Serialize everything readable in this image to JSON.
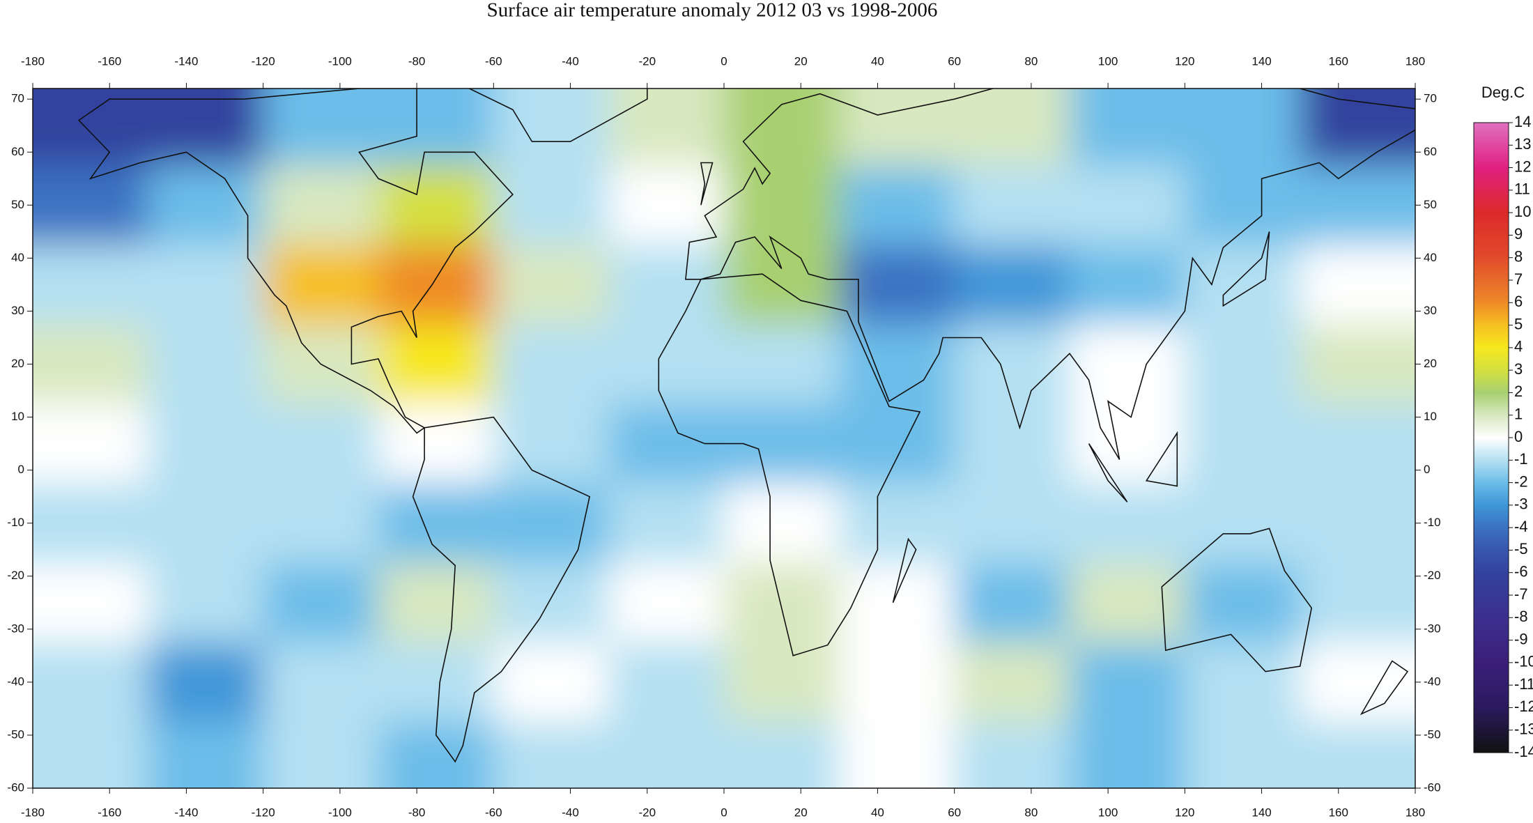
{
  "chart_data": {
    "type": "heatmap",
    "title": "Surface air temperature anomaly 2012 03 vs 1998-2006",
    "colorbar_label": "Deg.C",
    "xlim": [
      -180,
      180
    ],
    "ylim": [
      -60,
      72
    ],
    "xticks": [
      -180,
      -160,
      -140,
      -120,
      -100,
      -80,
      -60,
      -40,
      -20,
      0,
      20,
      40,
      60,
      80,
      100,
      120,
      140,
      160,
      180
    ],
    "yticks": [
      -60,
      -50,
      -40,
      -30,
      -20,
      -10,
      0,
      10,
      20,
      30,
      40,
      50,
      60,
      70
    ],
    "colorbar_ticks": [
      -14,
      -13,
      -12,
      -11,
      -10,
      -9,
      -8,
      -7,
      -6,
      -5,
      -4,
      -3,
      -2,
      -1,
      0,
      1,
      2,
      3,
      4,
      5,
      6,
      7,
      8,
      9,
      10,
      11,
      12,
      13,
      14
    ],
    "colorscale": [
      [
        -14,
        "#111111"
      ],
      [
        -12,
        "#2a1a5e"
      ],
      [
        -10,
        "#3b1f7a"
      ],
      [
        -8,
        "#3c2f8e"
      ],
      [
        -6,
        "#33429e"
      ],
      [
        -5,
        "#3856ad"
      ],
      [
        -4,
        "#3a72c2"
      ],
      [
        -3,
        "#3f96d8"
      ],
      [
        -2,
        "#6cbde9"
      ],
      [
        -1,
        "#b4e0f2"
      ],
      [
        0,
        "#ffffff"
      ],
      [
        1,
        "#d8e8c0"
      ],
      [
        2,
        "#a8d070"
      ],
      [
        3,
        "#d4e040"
      ],
      [
        4,
        "#f6e81e"
      ],
      [
        5,
        "#f6c020"
      ],
      [
        6,
        "#ef8a28"
      ],
      [
        7,
        "#e66a2a"
      ],
      [
        8,
        "#e24a2a"
      ],
      [
        10,
        "#dc2a2a"
      ],
      [
        12,
        "#e02080"
      ],
      [
        14,
        "#e070c0"
      ]
    ],
    "x": [
      -165,
      -135,
      -105,
      -75,
      -45,
      -15,
      15,
      45,
      75,
      105,
      135,
      165
    ],
    "y": [
      65,
      50,
      35,
      20,
      5,
      -10,
      -25,
      -40,
      -55
    ],
    "z": [
      [
        -6,
        -6,
        -2,
        -2,
        -1,
        1,
        2,
        1,
        1,
        -2,
        -2,
        -6
      ],
      [
        -4,
        -2,
        1,
        3,
        -1,
        0,
        2,
        -2,
        -1,
        -1,
        -2,
        -2
      ],
      [
        -1,
        -1,
        5,
        6,
        1,
        -1,
        2,
        -4,
        -3,
        -2,
        -1,
        0
      ],
      [
        1,
        -1,
        1,
        4,
        -1,
        -1,
        -1,
        -2,
        -1,
        0,
        -1,
        1
      ],
      [
        0,
        -1,
        -1,
        0,
        -1,
        -2,
        -2,
        -2,
        -1,
        0,
        -1,
        -1
      ],
      [
        -1,
        -1,
        -1,
        -2,
        -2,
        -1,
        0,
        -1,
        -1,
        -1,
        -1,
        -1
      ],
      [
        0,
        -1,
        -2,
        1,
        -1,
        0,
        1,
        0,
        -2,
        1,
        -2,
        -1
      ],
      [
        -1,
        -3,
        -1,
        -1,
        0,
        -1,
        1,
        0,
        1,
        -2,
        -1,
        0
      ],
      [
        -1,
        -2,
        -1,
        -2,
        -1,
        -1,
        -1,
        0,
        -1,
        -2,
        -1,
        -1
      ]
    ]
  }
}
